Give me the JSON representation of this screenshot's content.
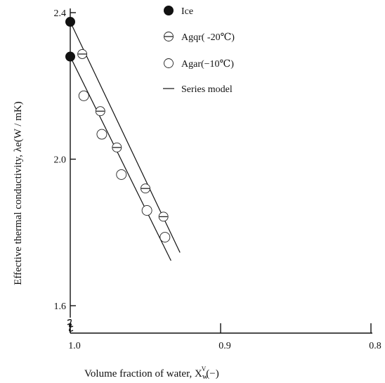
{
  "chart_data": {
    "type": "scatter",
    "xlabel": "Volume fraction of water, X",
    "xlabel_sub": "w",
    "xlabel_sup": "V",
    "xlabel_unit": "(−)",
    "ylabel": "Effective thermal conductivity, λe(W / mK)",
    "x_axis_reversed": true,
    "y_axis_break": true,
    "xlim": [
      1.0,
      0.8
    ],
    "ylim": [
      1.5,
      2.4
    ],
    "x_ticks": [
      {
        "value": 1.0,
        "label": "1.0"
      },
      {
        "value": 0.9,
        "label": "0.9"
      },
      {
        "value": 0.8,
        "label": "0.8"
      }
    ],
    "y_ticks": [
      {
        "value": 2.4,
        "label": "2.4"
      },
      {
        "value": 2.0,
        "label": "2.0"
      },
      {
        "value": 1.6,
        "label": "1.6"
      }
    ],
    "legend": {
      "placement": "top-center",
      "entries": [
        {
          "label": "Ice",
          "marker": "filled-circle"
        },
        {
          "label": "Agqr( -20℃)",
          "marker": "barred-circle"
        },
        {
          "label": "Agar(−10℃)",
          "marker": "open-circle"
        },
        {
          "label": "Series model",
          "marker": "line"
        }
      ]
    },
    "series": [
      {
        "name": "Ice",
        "marker": "filled-circle",
        "x": [
          1.0,
          1.0
        ],
        "y": [
          2.375,
          2.28
        ]
      },
      {
        "name": "Agqr( -20℃)",
        "marker": "barred-circle",
        "x": [
          0.992,
          0.98,
          0.969,
          0.95,
          0.938
        ],
        "y": [
          2.287,
          2.131,
          2.032,
          1.92,
          1.843
        ]
      },
      {
        "name": "Agar(−10℃)",
        "marker": "open-circle",
        "x": [
          0.991,
          0.979,
          0.966,
          0.949,
          0.937
        ],
        "y": [
          2.173,
          2.068,
          1.958,
          1.86,
          1.787
        ]
      },
      {
        "name": "Series model",
        "marker": "line",
        "style": "line",
        "lines": [
          {
            "x": [
              1.0,
              0.927
            ],
            "y": [
              2.375,
              1.745
            ]
          },
          {
            "x": [
              1.0,
              0.933
            ],
            "y": [
              2.28,
              1.723
            ]
          }
        ]
      }
    ]
  }
}
